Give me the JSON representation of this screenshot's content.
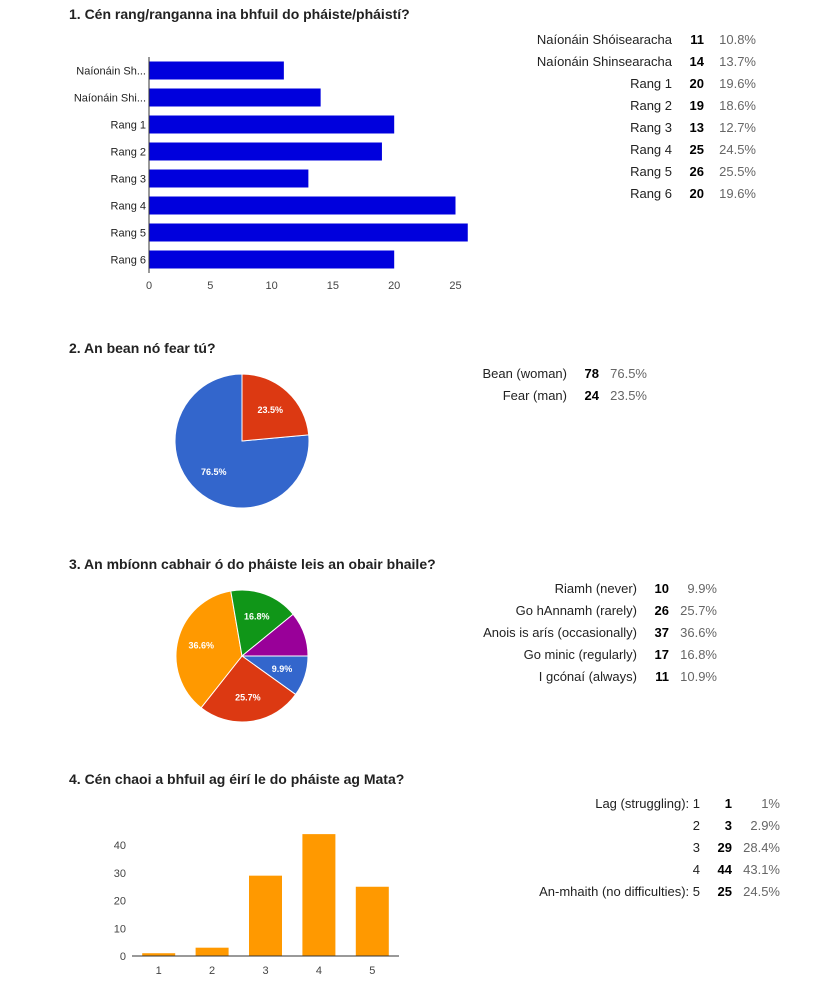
{
  "questions": [
    {
      "title": "1. Cén rang/ranganna ina bhfuil do pháiste/pháistí?",
      "summary": [
        {
          "label": "Naíonáin Shóisearacha",
          "count": "11",
          "percent": "10.8%"
        },
        {
          "label": "Naíonáin Shinsearacha",
          "count": "14",
          "percent": "13.7%"
        },
        {
          "label": "Rang 1",
          "count": "20",
          "percent": "19.6%"
        },
        {
          "label": "Rang 2",
          "count": "19",
          "percent": "18.6%"
        },
        {
          "label": "Rang 3",
          "count": "13",
          "percent": "12.7%"
        },
        {
          "label": "Rang 4",
          "count": "25",
          "percent": "24.5%"
        },
        {
          "label": "Rang 5",
          "count": "26",
          "percent": "25.5%"
        },
        {
          "label": "Rang 6",
          "count": "20",
          "percent": "19.6%"
        }
      ]
    },
    {
      "title": "2. An bean nó fear tú?",
      "summary": [
        {
          "label": "Bean (woman)",
          "count": "78",
          "percent": "76.5%"
        },
        {
          "label": "Fear (man)",
          "count": "24",
          "percent": "23.5%"
        }
      ]
    },
    {
      "title": "3. An mbíonn cabhair ó do pháiste leis an obair bhaile?",
      "summary": [
        {
          "label": "Riamh (never)",
          "count": "10",
          "percent": "9.9%"
        },
        {
          "label": "Go hAnnamh (rarely)",
          "count": "26",
          "percent": "25.7%"
        },
        {
          "label": "Anois is arís (occasionally)",
          "count": "37",
          "percent": "36.6%"
        },
        {
          "label": "Go minic (regularly)",
          "count": "17",
          "percent": "16.8%"
        },
        {
          "label": "I gcónaí (always)",
          "count": "11",
          "percent": "10.9%"
        }
      ]
    },
    {
      "title": "4. Cén chaoi a bhfuil ag éirí le do pháiste ag Mata?",
      "summary": [
        {
          "label": "Lag (struggling): 1",
          "count": "1",
          "percent": "1%"
        },
        {
          "label": "2",
          "count": "3",
          "percent": "2.9%"
        },
        {
          "label": "3",
          "count": "29",
          "percent": "28.4%"
        },
        {
          "label": "4",
          "count": "44",
          "percent": "43.1%"
        },
        {
          "label": "An-mhaith (no difficulties): 5",
          "count": "25",
          "percent": "24.5%"
        }
      ]
    }
  ],
  "chart_data": [
    {
      "type": "bar",
      "orientation": "horizontal",
      "categories": [
        "Naíonáin Sh...",
        "Naíonáin Shi...",
        "Rang 1",
        "Rang 2",
        "Rang 3",
        "Rang 4",
        "Rang 5",
        "Rang 6"
      ],
      "values": [
        11,
        14,
        20,
        19,
        13,
        25,
        26,
        20
      ],
      "xticks": [
        0,
        5,
        10,
        15,
        20,
        25
      ],
      "xlim": [
        0,
        26
      ],
      "color": "#0000dd",
      "grid": false
    },
    {
      "type": "pie",
      "labels": [
        "Bean (woman)",
        "Fear (man)"
      ],
      "values": [
        78,
        24
      ],
      "slice_labels": [
        "76.5%",
        "23.5%"
      ],
      "colors": [
        "#3366cc",
        "#dc3912"
      ]
    },
    {
      "type": "pie",
      "labels": [
        "Riamh (never)",
        "Go hAnnamh (rarely)",
        "Anois is arís (occasionally)",
        "Go minic (regularly)",
        "I gcónaí (always)"
      ],
      "values": [
        10,
        26,
        37,
        17,
        11
      ],
      "slice_labels": [
        "9.9%",
        "25.7%",
        "36.6%",
        "16.8%",
        ""
      ],
      "colors": [
        "#3366cc",
        "#dc3912",
        "#ff9900",
        "#109618",
        "#990099"
      ]
    },
    {
      "type": "bar",
      "orientation": "vertical",
      "categories": [
        "1",
        "2",
        "3",
        "4",
        "5"
      ],
      "values": [
        1,
        3,
        29,
        44,
        25
      ],
      "yticks": [
        0,
        10,
        20,
        30,
        40
      ],
      "ylim": [
        0,
        44
      ],
      "color": "#ff9900",
      "grid": false
    }
  ]
}
